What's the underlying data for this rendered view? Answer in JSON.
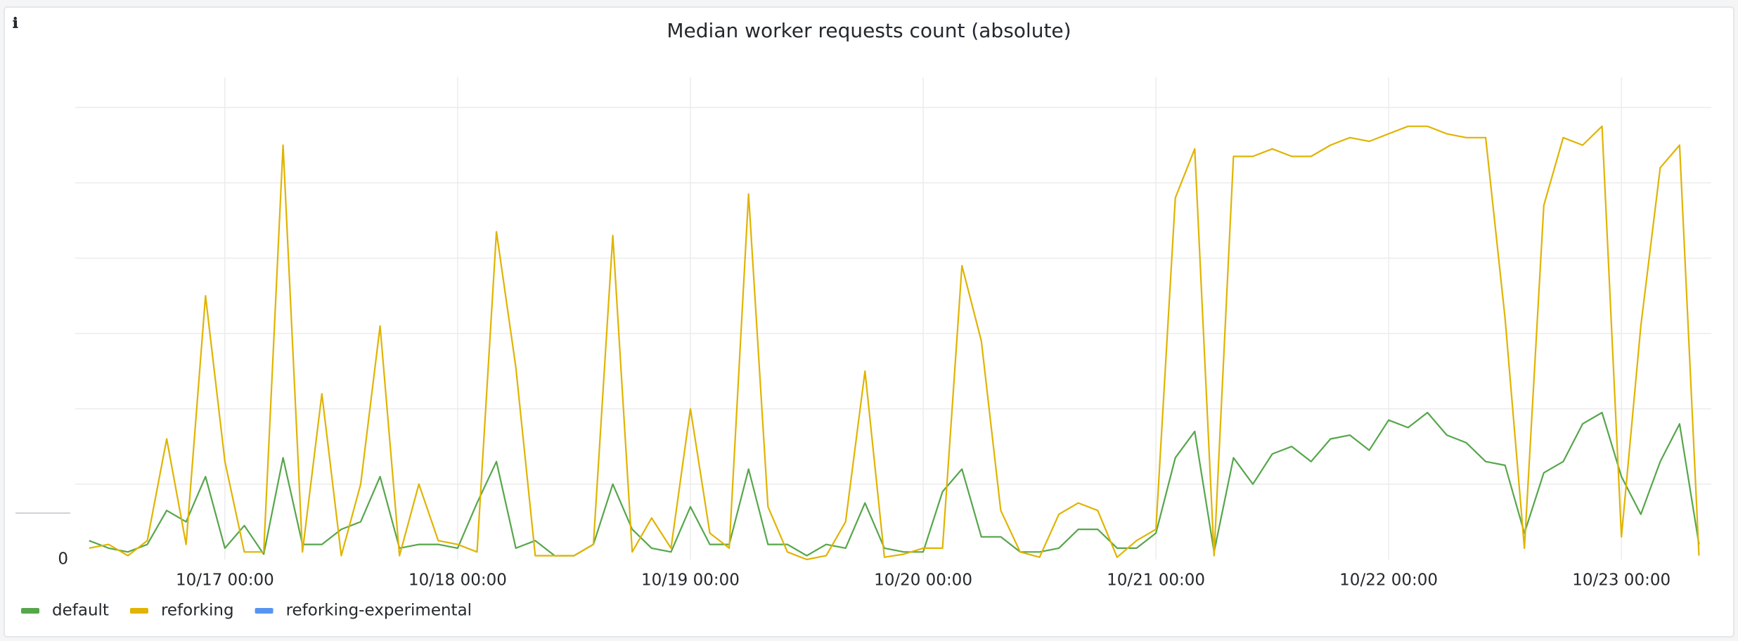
{
  "chart_data": {
    "type": "line",
    "title": "Median worker requests count (absolute)",
    "x": [
      "10/16 10:00",
      "10/16 12:00",
      "10/16 14:00",
      "10/16 16:00",
      "10/16 18:00",
      "10/16 20:00",
      "10/16 22:00",
      "10/17 00:00",
      "10/17 02:00",
      "10/17 04:00",
      "10/17 06:00",
      "10/17 08:00",
      "10/17 10:00",
      "10/17 12:00",
      "10/17 14:00",
      "10/17 16:00",
      "10/17 18:00",
      "10/17 20:00",
      "10/17 22:00",
      "10/18 00:00",
      "10/18 02:00",
      "10/18 04:00",
      "10/18 06:00",
      "10/18 08:00",
      "10/18 10:00",
      "10/18 12:00",
      "10/18 14:00",
      "10/18 16:00",
      "10/18 18:00",
      "10/18 20:00",
      "10/18 22:00",
      "10/19 00:00",
      "10/19 02:00",
      "10/19 04:00",
      "10/19 06:00",
      "10/19 08:00",
      "10/19 10:00",
      "10/19 12:00",
      "10/19 14:00",
      "10/19 16:00",
      "10/19 18:00",
      "10/19 20:00",
      "10/19 22:00",
      "10/20 00:00",
      "10/20 02:00",
      "10/20 04:00",
      "10/20 06:00",
      "10/20 08:00",
      "10/20 10:00",
      "10/20 12:00",
      "10/20 14:00",
      "10/20 16:00",
      "10/20 18:00",
      "10/20 20:00",
      "10/20 22:00",
      "10/21 00:00",
      "10/21 02:00",
      "10/21 04:00",
      "10/21 06:00",
      "10/21 08:00",
      "10/21 10:00",
      "10/21 12:00",
      "10/21 14:00",
      "10/21 16:00",
      "10/21 18:00",
      "10/21 20:00",
      "10/21 22:00",
      "10/22 00:00",
      "10/22 02:00",
      "10/22 04:00",
      "10/22 06:00",
      "10/22 08:00",
      "10/22 10:00",
      "10/22 12:00",
      "10/22 14:00",
      "10/22 16:00",
      "10/22 18:00",
      "10/22 20:00",
      "10/22 22:00",
      "10/23 00:00",
      "10/23 02:00",
      "10/23 04:00",
      "10/23 06:00",
      "10/23 08:00"
    ],
    "series": [
      {
        "name": "default",
        "color": "#56a64b",
        "values": [
          0.25,
          0.15,
          0.1,
          0.2,
          0.65,
          0.5,
          1.1,
          0.15,
          0.45,
          0.07,
          1.35,
          0.2,
          0.2,
          0.4,
          0.5,
          1.1,
          0.15,
          0.2,
          0.2,
          0.15,
          0.75,
          1.3,
          0.15,
          0.25,
          0.05,
          0.05,
          0.2,
          1.0,
          0.4,
          0.15,
          0.1,
          0.7,
          0.2,
          0.2,
          1.2,
          0.2,
          0.2,
          0.05,
          0.2,
          0.15,
          0.75,
          0.15,
          0.1,
          0.1,
          0.9,
          1.2,
          0.3,
          0.3,
          0.1,
          0.1,
          0.15,
          0.4,
          0.4,
          0.15,
          0.15,
          0.35,
          1.35,
          1.7,
          0.1,
          1.35,
          1.0,
          1.4,
          1.5,
          1.3,
          1.6,
          1.65,
          1.45,
          1.85,
          1.75,
          1.95,
          1.65,
          1.55,
          1.3,
          1.25,
          0.35,
          1.15,
          1.3,
          1.8,
          1.95,
          1.1,
          0.6,
          1.3,
          1.8,
          0.2
        ]
      },
      {
        "name": "reforking",
        "color": "#e0b400",
        "values": [
          0.15,
          0.2,
          0.05,
          0.25,
          1.6,
          0.2,
          3.5,
          1.3,
          0.1,
          0.1,
          5.5,
          0.1,
          2.2,
          0.05,
          1.0,
          3.1,
          0.05,
          1.0,
          0.25,
          0.2,
          0.1,
          4.35,
          2.55,
          0.05,
          0.05,
          0.05,
          0.2,
          4.3,
          0.1,
          0.55,
          0.15,
          2.0,
          0.35,
          0.15,
          4.85,
          0.7,
          0.1,
          0.0,
          0.05,
          0.5,
          2.5,
          0.03,
          0.07,
          0.15,
          0.15,
          3.9,
          2.9,
          0.65,
          0.1,
          0.03,
          0.6,
          0.75,
          0.65,
          0.03,
          0.25,
          0.4,
          4.8,
          5.45,
          0.05,
          5.35,
          5.35,
          5.45,
          5.35,
          5.35,
          5.5,
          5.6,
          5.55,
          5.65,
          5.75,
          5.75,
          5.65,
          5.6,
          5.6,
          3.2,
          0.15,
          4.7,
          5.6,
          5.5,
          5.75,
          0.3,
          3.1,
          5.2,
          5.5,
          0.05
        ]
      },
      {
        "name": "reforking-experimental",
        "color": "#5794f2",
        "values": [
          null,
          null,
          null,
          null,
          null,
          null,
          null,
          null,
          null,
          null,
          null,
          null,
          null,
          null,
          null,
          null,
          null,
          null,
          null,
          null,
          null,
          null,
          null,
          null,
          null,
          null,
          null,
          null,
          null,
          null,
          null,
          null,
          null,
          null,
          null,
          null,
          null,
          null,
          null,
          null,
          null,
          null,
          null,
          null,
          null,
          null,
          null,
          null,
          null,
          null,
          null,
          null,
          null,
          null,
          null,
          null,
          null,
          null,
          null,
          null,
          null,
          null,
          null,
          null,
          null,
          null,
          null,
          null,
          null,
          null,
          null,
          null,
          null,
          null,
          null,
          null,
          null,
          null,
          null,
          null,
          null,
          null,
          null,
          null
        ]
      }
    ],
    "xlim": [
      "10/16 08:34",
      "10/23 09:16"
    ],
    "xticks": [
      "10/17 00:00",
      "10/18 00:00",
      "10/19 00:00",
      "10/20 00:00",
      "10/21 00:00",
      "10/22 00:00",
      "10/23 00:00"
    ],
    "ylim": [
      0,
      6.4
    ],
    "yticks": [
      0
    ],
    "grid_lines": [
      1,
      2,
      3,
      4,
      5,
      6
    ],
    "grid": true,
    "legend": "bottom"
  }
}
